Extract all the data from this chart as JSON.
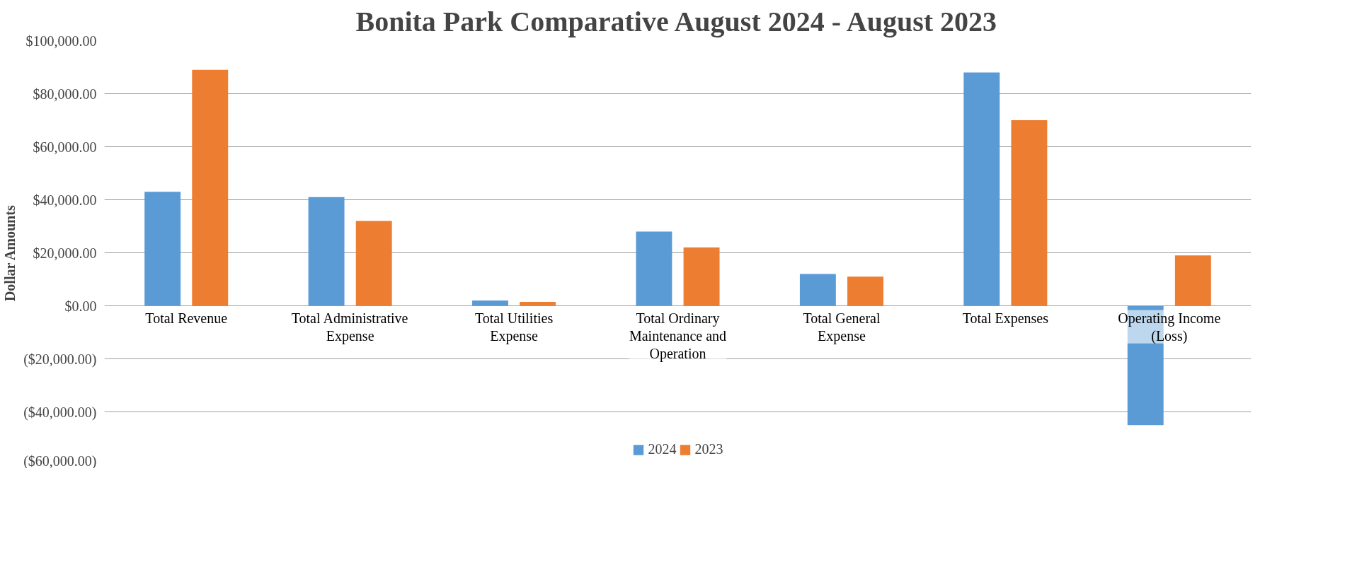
{
  "chart_data": {
    "type": "bar",
    "title": "Bonita Park Comparative August 2024 - August 2023",
    "ylabel": "Dollar Amounts",
    "categories": [
      "Total Revenue",
      "Total Administrative Expense",
      "Total Utilities Expense",
      "Total Ordinary Maintenance and Operation",
      "Total General Expense",
      "Total Expenses",
      "Operating Income (Loss)"
    ],
    "series": [
      {
        "name": "2024",
        "color": "#5b9bd5",
        "values": [
          43000,
          41000,
          2000,
          28000,
          12000,
          88000,
          -45000
        ]
      },
      {
        "name": "2023",
        "color": "#ed7d31",
        "values": [
          89000,
          32000,
          1500,
          22000,
          11000,
          70000,
          19000
        ]
      }
    ],
    "ylim": [
      -60000,
      100000
    ],
    "yticks": [
      {
        "value": -60000,
        "label": "($60,000.00)"
      },
      {
        "value": -40000,
        "label": "($40,000.00)"
      },
      {
        "value": -20000,
        "label": "($20,000.00)"
      },
      {
        "value": 0,
        "label": "$0.00"
      },
      {
        "value": 20000,
        "label": "$20,000.00"
      },
      {
        "value": 40000,
        "label": "$40,000.00"
      },
      {
        "value": 60000,
        "label": "$60,000.00"
      },
      {
        "value": 80000,
        "label": "$80,000.00"
      },
      {
        "value": 100000,
        "label": "$100,000.00"
      }
    ],
    "grid": "y",
    "legend": "bottom"
  }
}
